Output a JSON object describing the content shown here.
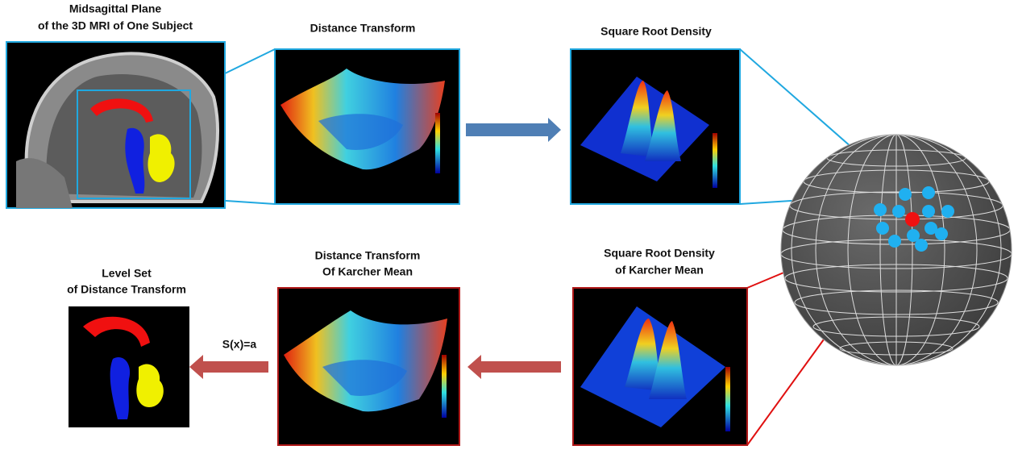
{
  "panels": [
    {
      "title": [
        "Midsagittal Plane",
        "of the 3D MRI of One Subject"
      ]
    },
    {
      "title": [
        "Distance Transform"
      ]
    },
    {
      "title": [
        "Square Root Density"
      ]
    },
    {
      "title": [
        "Square Root Density",
        "of Karcher Mean"
      ]
    },
    {
      "title": [
        "Distance Transform",
        "Of Karcher Mean"
      ]
    },
    {
      "title": [
        "Level Set",
        "of Distance Transform"
      ]
    }
  ],
  "equation": "S(x)=a"
}
